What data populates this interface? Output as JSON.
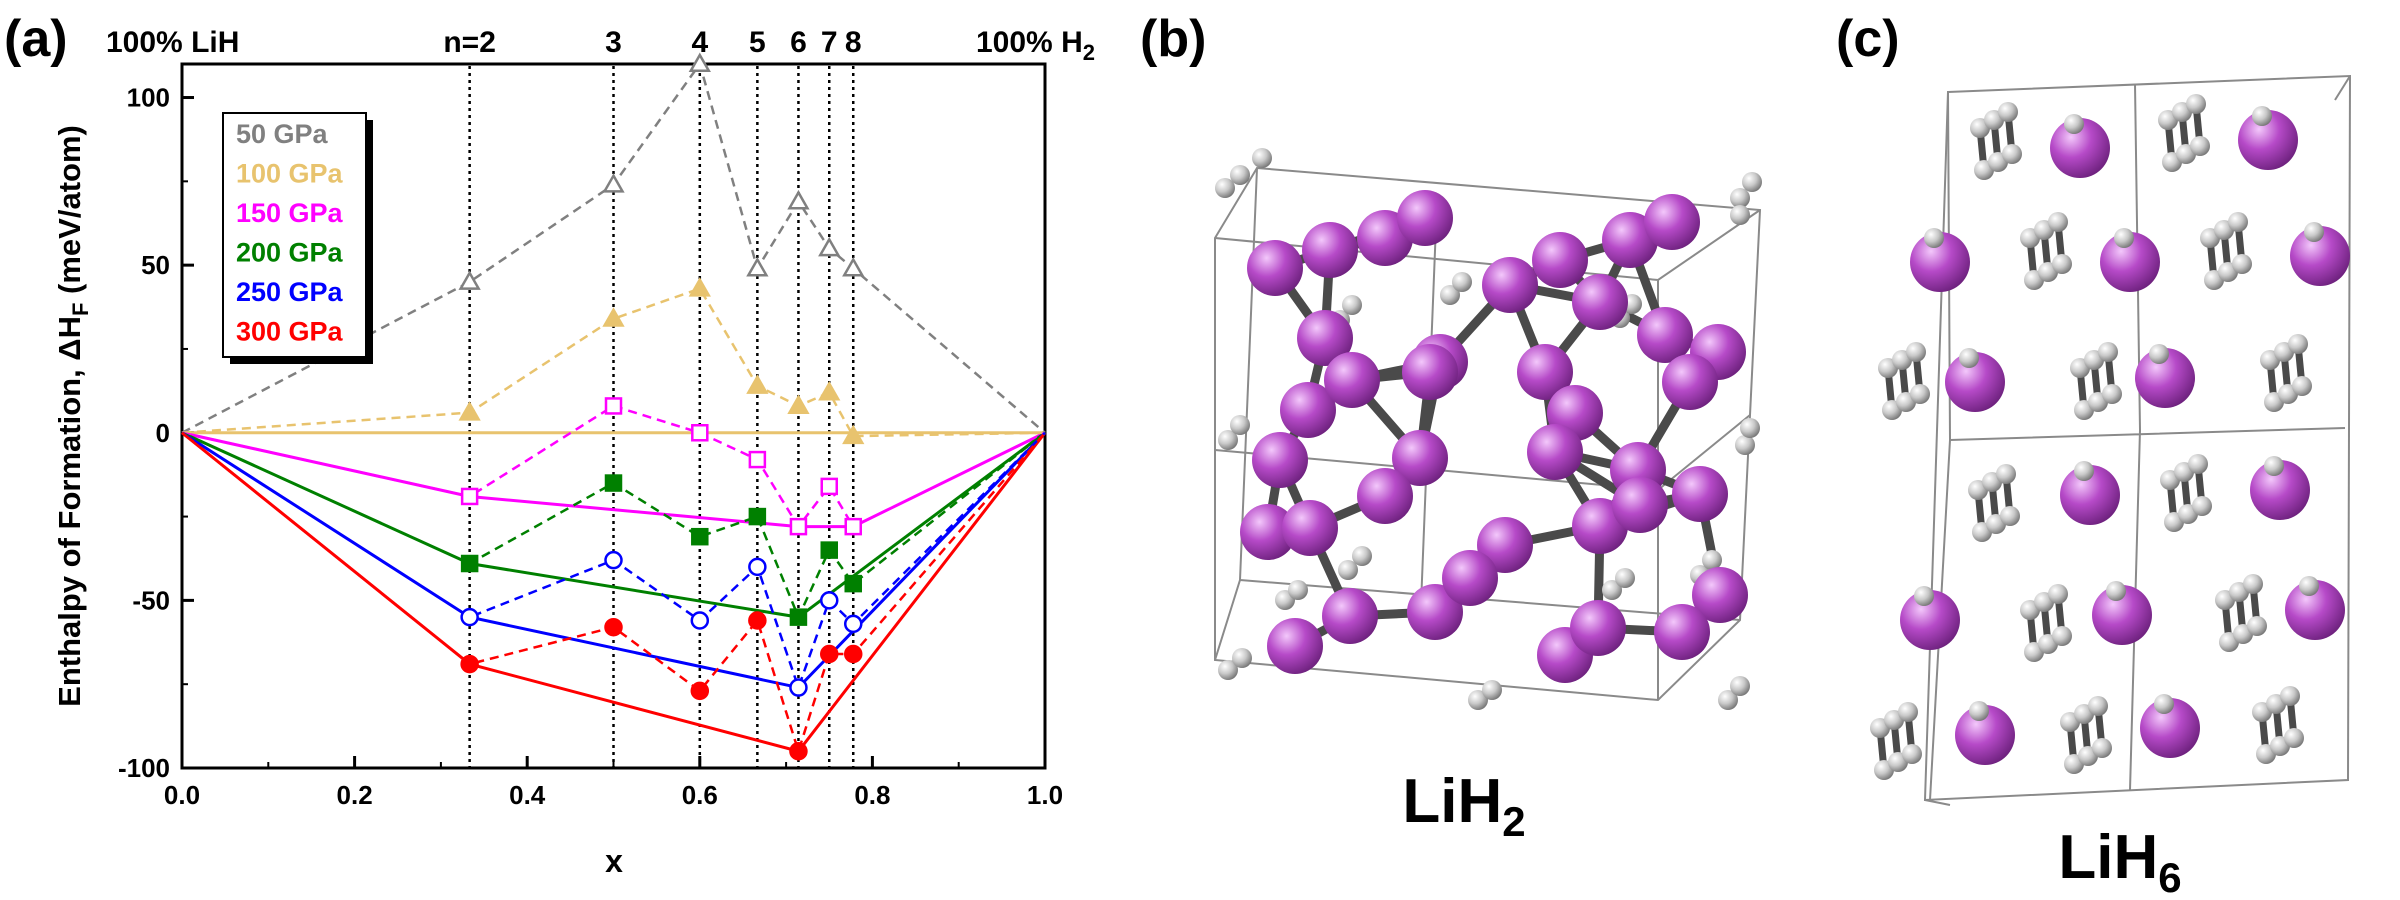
{
  "panel_labels": {
    "a": "(a)",
    "b": "(b)",
    "c": "(c)"
  },
  "header": {
    "left": "100% LiH",
    "right_main": "100% H",
    "right_sub": "2",
    "n_labels": [
      "n=2",
      "3",
      "4",
      "5",
      "6",
      "7",
      "8"
    ],
    "n_x": [
      0.3333,
      0.5,
      0.6,
      0.6667,
      0.7143,
      0.75,
      0.7778
    ]
  },
  "compounds": {
    "b": {
      "main": "LiH",
      "sub": "2"
    },
    "c": {
      "main": "LiH",
      "sub": "6"
    }
  },
  "colors": {
    "50": "#808080",
    "100": "#e8c36e",
    "150": "#ff00ff",
    "200": "#008000",
    "250": "#0000ff",
    "300": "#ff0000",
    "li_atom": "#b64ac8",
    "h_atom": "#c8c8c8",
    "bond": "#4a4a4a"
  },
  "chart_data": {
    "type": "line",
    "title": "",
    "xlabel": "x",
    "ylabel_main": "Enthalpy of Formation, ΔH",
    "ylabel_sub": "F",
    "ylabel_unit": " (meV/atom)",
    "xlim": [
      0,
      1
    ],
    "ylim": [
      -100,
      110
    ],
    "x_ticks": [
      "0.0",
      "0.2",
      "0.4",
      "0.6",
      "0.8",
      "1.0"
    ],
    "y_ticks": [
      "-100",
      "-50",
      "0",
      "50",
      "100"
    ],
    "legend_position": "top-left",
    "x": [
      0.3333,
      0.5,
      0.6,
      0.6667,
      0.7143,
      0.75,
      0.7778
    ],
    "series": [
      {
        "name": "50 GPa",
        "key": "50",
        "marker": "triangle-open",
        "values": [
          45,
          74,
          110,
          49,
          69,
          55,
          49
        ]
      },
      {
        "name": "100 GPa",
        "key": "100",
        "marker": "triangle-filled",
        "values": [
          6,
          34,
          43,
          14,
          8,
          12,
          -1
        ]
      },
      {
        "name": "150 GPa",
        "key": "150",
        "marker": "square-open",
        "values": [
          -19,
          8,
          0,
          -8,
          -28,
          -16,
          -28
        ]
      },
      {
        "name": "200 GPa",
        "key": "200",
        "marker": "square-filled",
        "values": [
          -39,
          -15,
          -31,
          -25,
          -55,
          -35,
          -45
        ]
      },
      {
        "name": "250 GPa",
        "key": "250",
        "marker": "circle-open",
        "values": [
          -55,
          -38,
          -56,
          -40,
          -76,
          -50,
          -57
        ]
      },
      {
        "name": "300 GPa",
        "key": "300",
        "marker": "circle-filled",
        "values": [
          -69,
          -58,
          -77,
          -56,
          -95,
          -66,
          -66
        ]
      }
    ],
    "hulls": [
      {
        "key": "100",
        "x": [
          0,
          1
        ],
        "y": [
          0,
          0
        ]
      },
      {
        "key": "150",
        "x": [
          0,
          0.3333,
          0.7143,
          0.7778,
          1
        ],
        "y": [
          0,
          -19,
          -28,
          -28,
          0
        ]
      },
      {
        "key": "200",
        "x": [
          0,
          0.3333,
          0.7143,
          1
        ],
        "y": [
          0,
          -39,
          -55,
          0
        ]
      },
      {
        "key": "250",
        "x": [
          0,
          0.3333,
          0.7143,
          1
        ],
        "y": [
          0,
          -55,
          -76,
          0
        ]
      },
      {
        "key": "300",
        "x": [
          0,
          0.3333,
          0.7143,
          1
        ],
        "y": [
          0,
          -69,
          -95,
          0
        ]
      }
    ]
  }
}
